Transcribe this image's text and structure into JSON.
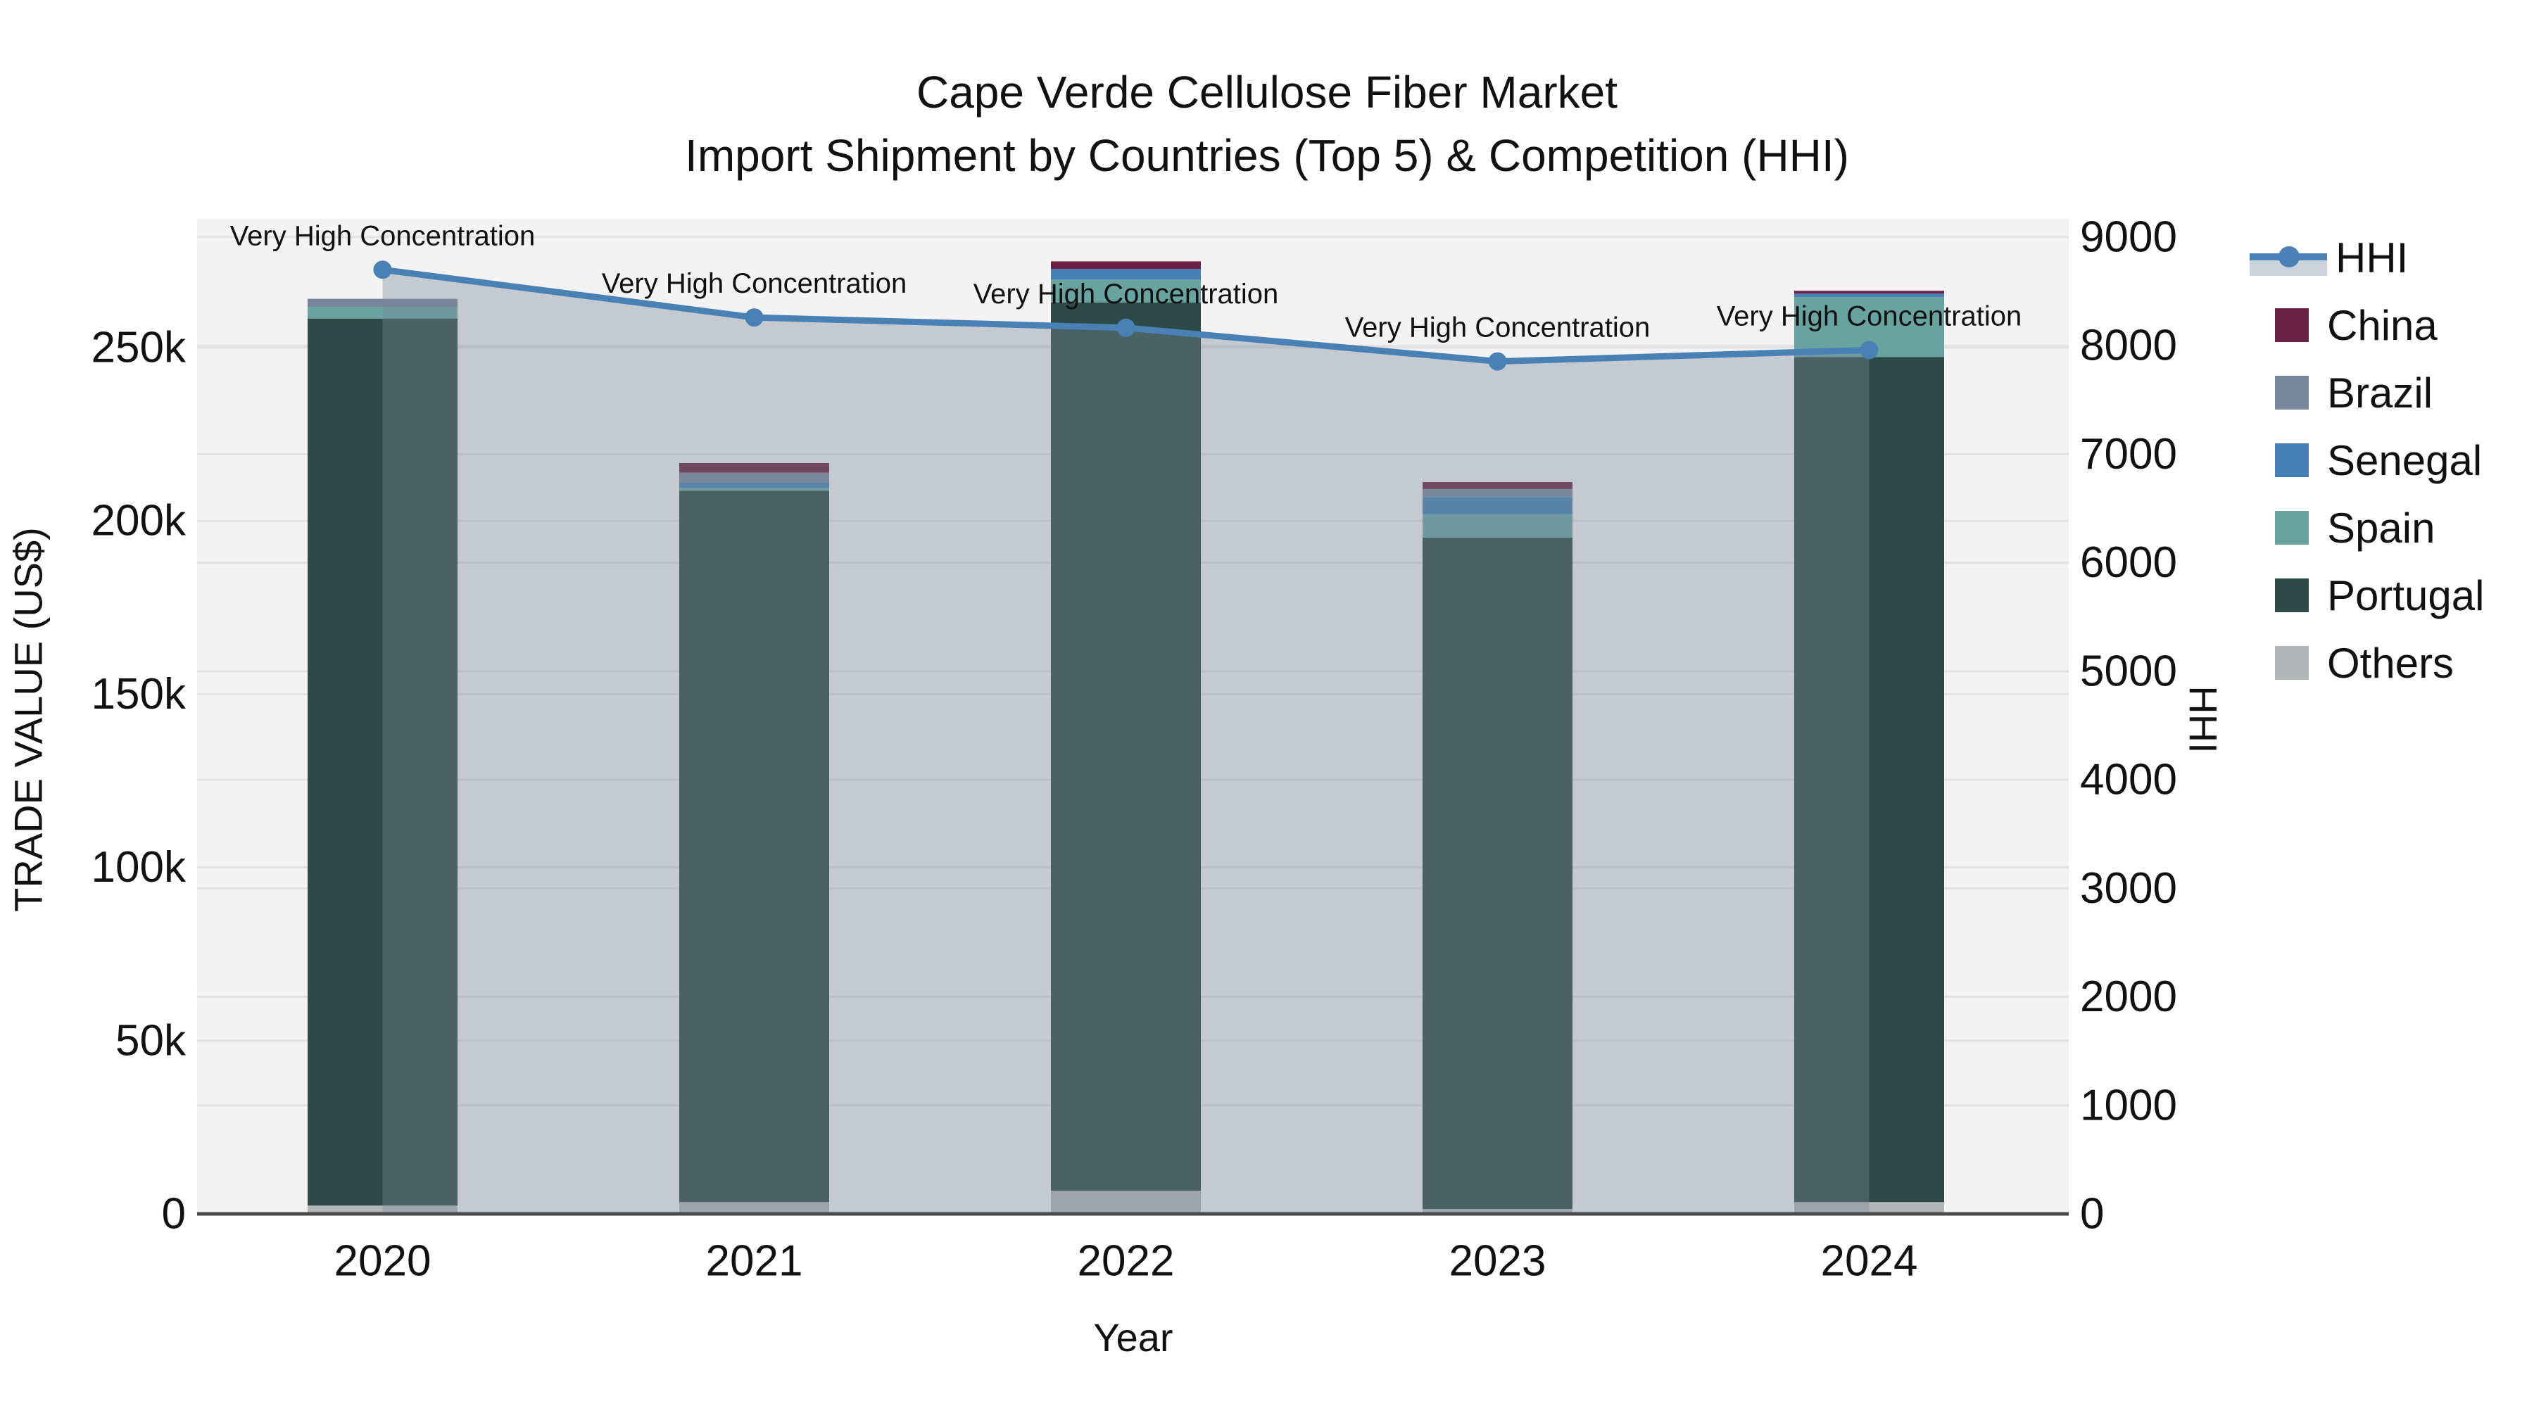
{
  "title": {
    "line1": "Cape Verde Cellulose Fiber Market",
    "line2": "Import Shipment by Countries (Top 5) & Competition (HHI)"
  },
  "axes": {
    "x": {
      "title": "Year",
      "categories": [
        "2020",
        "2021",
        "2022",
        "2023",
        "2024"
      ]
    },
    "left": {
      "title": "TRADE VALUE (US$)",
      "tick_labels": [
        "0",
        "50k",
        "100k",
        "150k",
        "200k",
        "250k"
      ],
      "tick_values": [
        0,
        50000,
        100000,
        150000,
        200000,
        250000
      ],
      "range": [
        0,
        287000
      ]
    },
    "right": {
      "title": "HHI",
      "tick_labels": [
        "0",
        "1000",
        "2000",
        "3000",
        "4000",
        "5000",
        "6000",
        "7000",
        "8000",
        "9000"
      ],
      "tick_values": [
        0,
        1000,
        2000,
        3000,
        4000,
        5000,
        6000,
        7000,
        8000,
        9000
      ],
      "range": [
        0,
        9170
      ]
    }
  },
  "annotations": [
    {
      "text": "Very High Concentration",
      "year": "2020"
    },
    {
      "text": "Very High Concentration",
      "year": "2021"
    },
    {
      "text": "Very High Concentration",
      "year": "2022"
    },
    {
      "text": "Very High Concentration",
      "year": "2023"
    },
    {
      "text": "Very High Concentration",
      "year": "2024"
    }
  ],
  "legend": {
    "items": [
      {
        "label": "HHI",
        "type": "line",
        "color": "#4a81b5"
      },
      {
        "label": "China",
        "type": "swatch",
        "color": "#6b2143"
      },
      {
        "label": "Brazil",
        "type": "swatch",
        "color": "#77869b"
      },
      {
        "label": "Senegal",
        "type": "swatch",
        "color": "#4581b6"
      },
      {
        "label": "Spain",
        "type": "swatch",
        "color": "#68a3a0"
      },
      {
        "label": "Portugal",
        "type": "swatch",
        "color": "#2e4a47"
      },
      {
        "label": "Others",
        "type": "swatch",
        "color": "#b3b6b6"
      }
    ]
  },
  "chart_data": {
    "type": "combo: stacked-bar + line (secondary axis)",
    "title": "Cape Verde Cellulose Fiber Market — Import Shipment by Countries (Top 5) & Competition (HHI)",
    "xlabel": "Year",
    "ylabel": "TRADE VALUE (US$)",
    "y2label": "HHI",
    "categories": [
      "2020",
      "2021",
      "2022",
      "2023",
      "2024"
    ],
    "series": [
      {
        "name": "China",
        "color": "#6b2143",
        "values": [
          0,
          2800,
          2200,
          2000,
          800
        ]
      },
      {
        "name": "Brazil",
        "color": "#77869b",
        "values": [
          2400,
          2800,
          0,
          2400,
          0
        ]
      },
      {
        "name": "Senegal",
        "color": "#4581b6",
        "values": [
          0,
          1600,
          3000,
          4900,
          1000
        ]
      },
      {
        "name": "Spain",
        "color": "#68a3a0",
        "values": [
          3300,
          800,
          6700,
          6700,
          17300
        ]
      },
      {
        "name": "Portugal",
        "color": "#2e4a47",
        "values": [
          256000,
          205300,
          256300,
          193800,
          243900
        ]
      },
      {
        "name": "Others",
        "color": "#b3b6b6",
        "values": [
          2400,
          3400,
          6700,
          1400,
          3400
        ]
      }
    ],
    "stack_order_bottom_to_top": [
      "Others",
      "Portugal",
      "Spain",
      "Senegal",
      "Brazil",
      "China"
    ],
    "bar_totals": [
      264100,
      216700,
      274900,
      211200,
      266400
    ],
    "line_series": {
      "name": "HHI",
      "values": [
        8700,
        8260,
        8165,
        7855,
        7960
      ],
      "color": "#4a81b5",
      "area_fill": "rgba(122,136,150,0.38)",
      "axis": "right",
      "point_annotations": [
        "Very High Concentration",
        "Very High Concentration",
        "Very High Concentration",
        "Very High Concentration",
        "Very High Concentration"
      ]
    },
    "ylim": [
      0,
      287000
    ],
    "y2lim": [
      0,
      9170
    ],
    "grid": true,
    "legend_position": "right",
    "plot_bg": "#f3f3f3",
    "grid_color": "#e3e3e3",
    "axis_line_color": "#4a4a4a"
  }
}
